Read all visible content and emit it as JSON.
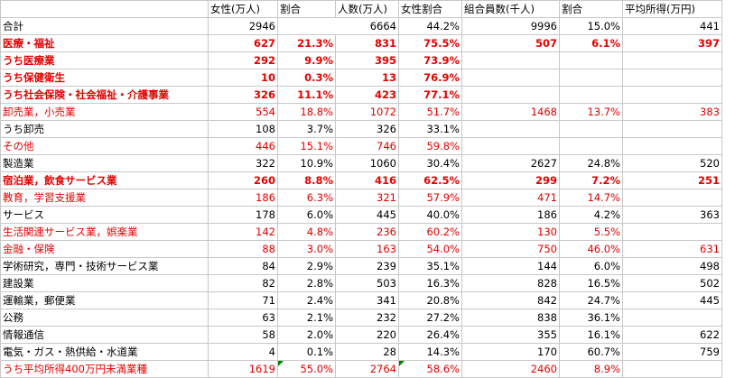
{
  "headers": [
    "",
    "女性(万人)",
    "割合",
    "人数(万人)",
    "女性割合",
    "組合員数(千人)",
    "割合",
    "平均所得(万円)"
  ],
  "rows": [
    {
      "label": "合計",
      "cells": [
        "2946",
        "",
        "6664",
        "44.2%",
        "9996",
        "15.0%",
        "441"
      ],
      "red": false,
      "bold": false
    },
    {
      "label": "医療・福祉",
      "cells": [
        "627",
        "21.3%",
        "831",
        "75.5%",
        "507",
        "6.1%",
        "397"
      ],
      "red": true,
      "bold": true
    },
    {
      "label": "うち医療業",
      "cells": [
        "292",
        "9.9%",
        "395",
        "73.9%",
        "",
        "",
        ""
      ],
      "red": true,
      "bold": true
    },
    {
      "label": "うち保健衛生",
      "cells": [
        "10",
        "0.3%",
        "13",
        "76.9%",
        "",
        "",
        ""
      ],
      "red": true,
      "bold": true
    },
    {
      "label": "うち社会保険・社会福祉・介護事業",
      "cells": [
        "326",
        "11.1%",
        "423",
        "77.1%",
        "",
        "",
        ""
      ],
      "red": true,
      "bold": true
    },
    {
      "label": "卸売業，小売業",
      "cells": [
        "554",
        "18.8%",
        "1072",
        "51.7%",
        "1468",
        "13.7%",
        "383"
      ],
      "red": true,
      "bold": false
    },
    {
      "label": "うち卸売",
      "cells": [
        "108",
        "3.7%",
        "326",
        "33.1%",
        "",
        "",
        ""
      ],
      "red": false,
      "bold": false
    },
    {
      "label": "その他",
      "cells": [
        "446",
        "15.1%",
        "746",
        "59.8%",
        "",
        "",
        ""
      ],
      "red": true,
      "bold": false
    },
    {
      "label": "製造業",
      "cells": [
        "322",
        "10.9%",
        "1060",
        "30.4%",
        "2627",
        "24.8%",
        "520"
      ],
      "red": false,
      "bold": false
    },
    {
      "label": "宿泊業，飲食サービス業",
      "cells": [
        "260",
        "8.8%",
        "416",
        "62.5%",
        "299",
        "7.2%",
        "251"
      ],
      "red": true,
      "bold": true
    },
    {
      "label": "教育，学習支援業",
      "cells": [
        "186",
        "6.3%",
        "321",
        "57.9%",
        "471",
        "14.7%",
        ""
      ],
      "red": true,
      "bold": false
    },
    {
      "label": "サービス",
      "cells": [
        "178",
        "6.0%",
        "445",
        "40.0%",
        "186",
        "4.2%",
        "363"
      ],
      "red": false,
      "bold": false
    },
    {
      "label": "生活関連サービス業，娯楽業",
      "cells": [
        "142",
        "4.8%",
        "236",
        "60.2%",
        "130",
        "5.5%",
        ""
      ],
      "red": true,
      "bold": false
    },
    {
      "label": "金融・保険",
      "cells": [
        "88",
        "3.0%",
        "163",
        "54.0%",
        "750",
        "46.0%",
        "631"
      ],
      "red": true,
      "bold": false
    },
    {
      "label": "学術研究，専門・技術サービス業",
      "cells": [
        "84",
        "2.9%",
        "239",
        "35.1%",
        "144",
        "6.0%",
        "498"
      ],
      "red": false,
      "bold": false
    },
    {
      "label": "建設業",
      "cells": [
        "82",
        "2.8%",
        "503",
        "16.3%",
        "828",
        "16.5%",
        "502"
      ],
      "red": false,
      "bold": false
    },
    {
      "label": "運輸業，郵便業",
      "cells": [
        "71",
        "2.4%",
        "341",
        "20.8%",
        "842",
        "24.7%",
        "445"
      ],
      "red": false,
      "bold": false
    },
    {
      "label": "公務",
      "cells": [
        "63",
        "2.1%",
        "232",
        "27.2%",
        "838",
        "36.1%",
        ""
      ],
      "red": false,
      "bold": false
    },
    {
      "label": "情報通信",
      "cells": [
        "58",
        "2.0%",
        "220",
        "26.4%",
        "355",
        "16.1%",
        "622"
      ],
      "red": false,
      "bold": false
    },
    {
      "label": "電気・ガス・熱供給・水道業",
      "cells": [
        "4",
        "0.1%",
        "28",
        "14.3%",
        "170",
        "60.7%",
        "759"
      ],
      "red": false,
      "bold": false
    },
    {
      "label": "うち平均所得400万円未満業種",
      "cells": [
        "1619",
        "55.0%",
        "2764",
        "58.6%",
        "2460",
        "8.9%",
        ""
      ],
      "red": true,
      "bold": false
    }
  ],
  "colors": {
    "red_text": "#e60000",
    "grid": "#c8c8c8",
    "error_marker": "#008000"
  }
}
